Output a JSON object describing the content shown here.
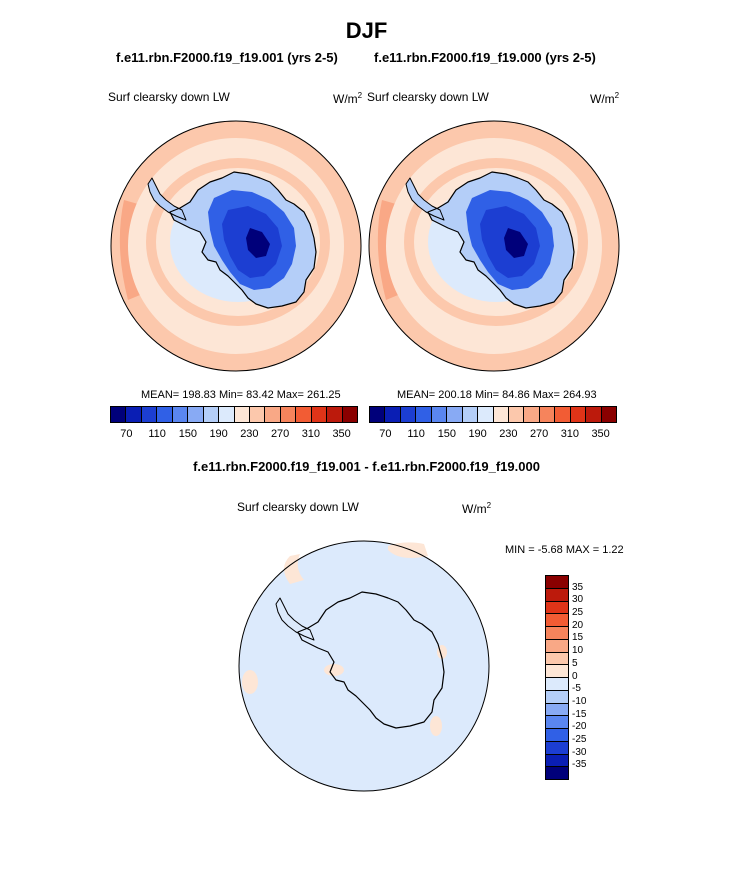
{
  "title": "DJF",
  "panels": [
    {
      "case": "f.e11.rbn.F2000.f19_f19.001 (yrs 2-5)",
      "variable": "Surf clearsky down LW",
      "units": "W/m",
      "units_exp": "2",
      "stats": "MEAN= 198.83  Min=  83.42  Max= 261.25"
    },
    {
      "case": "f.e11.rbn.F2000.f19_f19.000 (yrs 2-5)",
      "variable": "Surf clearsky down LW",
      "units": "W/m",
      "units_exp": "2",
      "stats": "MEAN= 200.18  Min=  84.86  Max= 264.93"
    }
  ],
  "colorbar_abs": {
    "colors": [
      "#00007a",
      "#0a1eb4",
      "#1c3ed2",
      "#3060e6",
      "#5a86f0",
      "#88aaf4",
      "#b4cef8",
      "#dceafc",
      "#fde6d6",
      "#fcc8ac",
      "#f9a886",
      "#f6845c",
      "#f25c34",
      "#e03418",
      "#bc1a0c",
      "#8a0000"
    ],
    "labels": [
      "70",
      "110",
      "150",
      "190",
      "230",
      "270",
      "310",
      "350"
    ]
  },
  "diff": {
    "title": "f.e11.rbn.F2000.f19_f19.001 - f.e11.rbn.F2000.f19_f19.000",
    "variable": "Surf clearsky down LW",
    "units": "W/m",
    "units_exp": "2",
    "stats": "MIN =  -5.68 MAX =   1.22"
  },
  "colorbar_diff": {
    "colors": [
      "#8a0000",
      "#bc1a0c",
      "#e03418",
      "#f25c34",
      "#f6845c",
      "#f9a886",
      "#fcc8ac",
      "#fde6d6",
      "#dceafc",
      "#b4cef8",
      "#88aaf4",
      "#5a86f0",
      "#3060e6",
      "#1c3ed2",
      "#0a1eb4",
      "#00007a"
    ],
    "labels": [
      "35",
      "30",
      "25",
      "20",
      "15",
      "10",
      "5",
      "0",
      "-5",
      "-10",
      "-15",
      "-20",
      "-25",
      "-30",
      "-35"
    ]
  },
  "map_colors": {
    "ocean_outer": "#fde6d6",
    "ocean_mid": "#fcc8ac",
    "ocean_warm": "#f9a886",
    "sea_ice": "#dceafc",
    "coast": "#b4cef8",
    "ice_low": "#88aaf4",
    "ice_mid": "#3060e6",
    "ice_high": "#1c3ed2",
    "plateau": "#0a1eb4",
    "dome": "#00007a",
    "diff_bg": "#dceafc",
    "diff_pos": "#fde6d6"
  }
}
